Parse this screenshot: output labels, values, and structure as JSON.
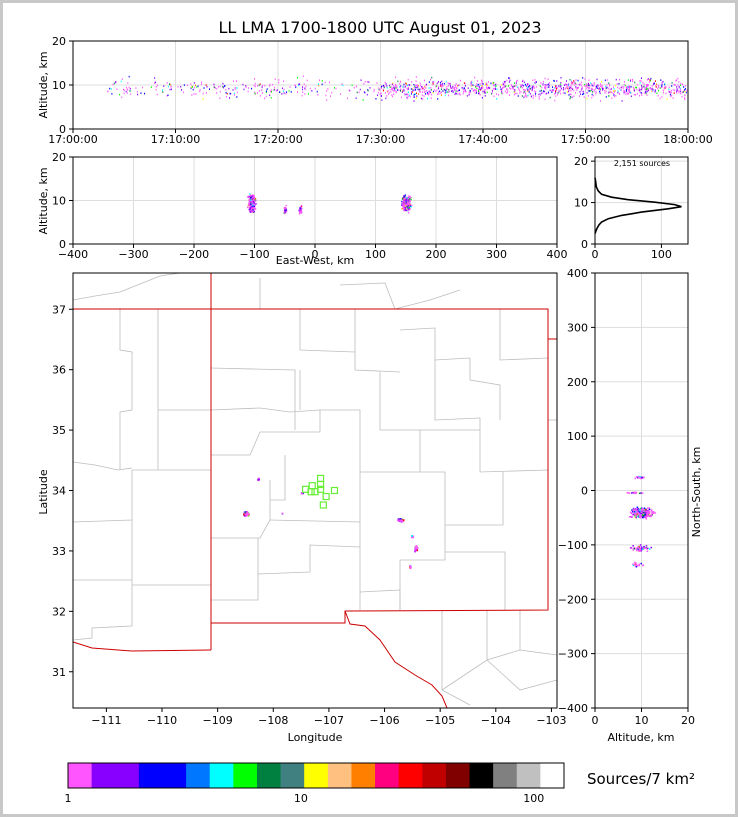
{
  "title": "LL LMA 1700-1800 UTC August 01, 2023",
  "chart_data": [
    {
      "type": "scatter",
      "panel": "time-altitude",
      "ylabel": "Altitude, km",
      "xlim": [
        "17:00:00",
        "18:00:00"
      ],
      "ylim": [
        0,
        20
      ],
      "x_ticks": [
        "17:00:00",
        "17:10:00",
        "17:20:00",
        "17:30:00",
        "17:40:00",
        "17:50:00",
        "18:00:00"
      ],
      "y_ticks": [
        "0",
        "10",
        "20"
      ],
      "grid": true
    },
    {
      "type": "scatter",
      "panel": "east-west-altitude",
      "xlabel": "East-West, km",
      "ylabel": "Altitude, km",
      "xlim": [
        -400,
        400
      ],
      "ylim": [
        0,
        20
      ],
      "x_ticks": [
        "−400",
        "−300",
        "−200",
        "−100",
        "0",
        "100",
        "200",
        "300",
        "400"
      ],
      "y_ticks": [
        "0",
        "10",
        "20"
      ],
      "clusters": [
        {
          "x": -105,
          "z": 9.5
        },
        {
          "x": -50,
          "z": 8
        },
        {
          "x": -25,
          "z": 8
        },
        {
          "x": 150,
          "z": 9.5
        }
      ]
    },
    {
      "type": "line",
      "panel": "altitude-histogram",
      "annotation": "2,151 sources",
      "xlim": [
        0,
        140
      ],
      "ylim": [
        0,
        21
      ],
      "x_ticks": [
        "0",
        "100"
      ],
      "y_ticks": [
        "0",
        "10",
        "20"
      ],
      "profile": [
        [
          0,
          2.5
        ],
        [
          1,
          3
        ],
        [
          3,
          3.8
        ],
        [
          6,
          4.6
        ],
        [
          10,
          5.3
        ],
        [
          20,
          6.1
        ],
        [
          40,
          6.9
        ],
        [
          70,
          7.7
        ],
        [
          110,
          8.5
        ],
        [
          130,
          9.0
        ],
        [
          120,
          9.5
        ],
        [
          90,
          10.1
        ],
        [
          50,
          10.7
        ],
        [
          25,
          11.3
        ],
        [
          10,
          12
        ],
        [
          5,
          12.8
        ],
        [
          2,
          13.8
        ],
        [
          1,
          15
        ],
        [
          0,
          16
        ]
      ]
    },
    {
      "type": "map",
      "panel": "plan-view",
      "xlabel": "Longitude",
      "ylabel": "Latitude",
      "xlim": [
        -111.6,
        -102.9
      ],
      "ylim": [
        30.4,
        37.6
      ],
      "x_ticks": [
        "−111",
        "−110",
        "−109",
        "−108",
        "−107",
        "−106",
        "−105",
        "−104",
        "−103"
      ],
      "y_ticks": [
        "31",
        "32",
        "33",
        "34",
        "35",
        "36",
        "37"
      ],
      "stations": [
        {
          "lon": -107.15,
          "lat": 34.2
        },
        {
          "lon": -107.3,
          "lat": 34.08
        },
        {
          "lon": -107.42,
          "lat": 34.02
        },
        {
          "lon": -107.25,
          "lat": 33.98
        },
        {
          "lon": -107.15,
          "lat": 34.02
        },
        {
          "lon": -107.05,
          "lat": 33.9
        },
        {
          "lon": -107.1,
          "lat": 33.76
        },
        {
          "lon": -106.9,
          "lat": 34.0
        },
        {
          "lon": -107.15,
          "lat": 34.1
        },
        {
          "lon": -107.32,
          "lat": 33.98
        }
      ],
      "source_clusters": [
        {
          "lon": -108.5,
          "lat": 33.63
        },
        {
          "lon": -108.28,
          "lat": 34.2
        },
        {
          "lon": -107.5,
          "lat": 33.97
        },
        {
          "lon": -107.85,
          "lat": 33.63
        },
        {
          "lon": -105.72,
          "lat": 33.52
        },
        {
          "lon": -105.45,
          "lat": 33.05
        },
        {
          "lon": -105.55,
          "lat": 32.75
        },
        {
          "lon": -105.52,
          "lat": 33.25
        }
      ]
    },
    {
      "type": "scatter",
      "panel": "altitude-north-south",
      "xlabel": "Altitude, km",
      "ylabel": "North-South, km",
      "xlim": [
        0,
        20
      ],
      "ylim": [
        -400,
        400
      ],
      "x_ticks": [
        "0",
        "10",
        "20"
      ],
      "y_ticks": [
        "−400",
        "−300",
        "−200",
        "−100",
        "0",
        "100",
        "200",
        "300",
        "400"
      ],
      "clusters": [
        {
          "z": 9.5,
          "y": 25
        },
        {
          "z": 8.5,
          "y": -3
        },
        {
          "z": 10,
          "y": -40
        },
        {
          "z": 9.5,
          "y": -105
        },
        {
          "z": 9,
          "y": -135
        }
      ]
    }
  ],
  "colorbar": {
    "label": "Sources/7 km²",
    "tick_labels": [
      "1",
      "10",
      "100"
    ],
    "colors": [
      "#ff55ff",
      "#8800ff",
      "#8800ff",
      "#0000ff",
      "#0000ff",
      "#0077ff",
      "#00ffff",
      "#00ff00",
      "#008040",
      "#408080",
      "#ffff00",
      "#ffc080",
      "#ff8000",
      "#ff0080",
      "#ff0000",
      "#c00000",
      "#800000",
      "#000000",
      "#808080",
      "#c0c0c0",
      "#ffffff"
    ]
  }
}
